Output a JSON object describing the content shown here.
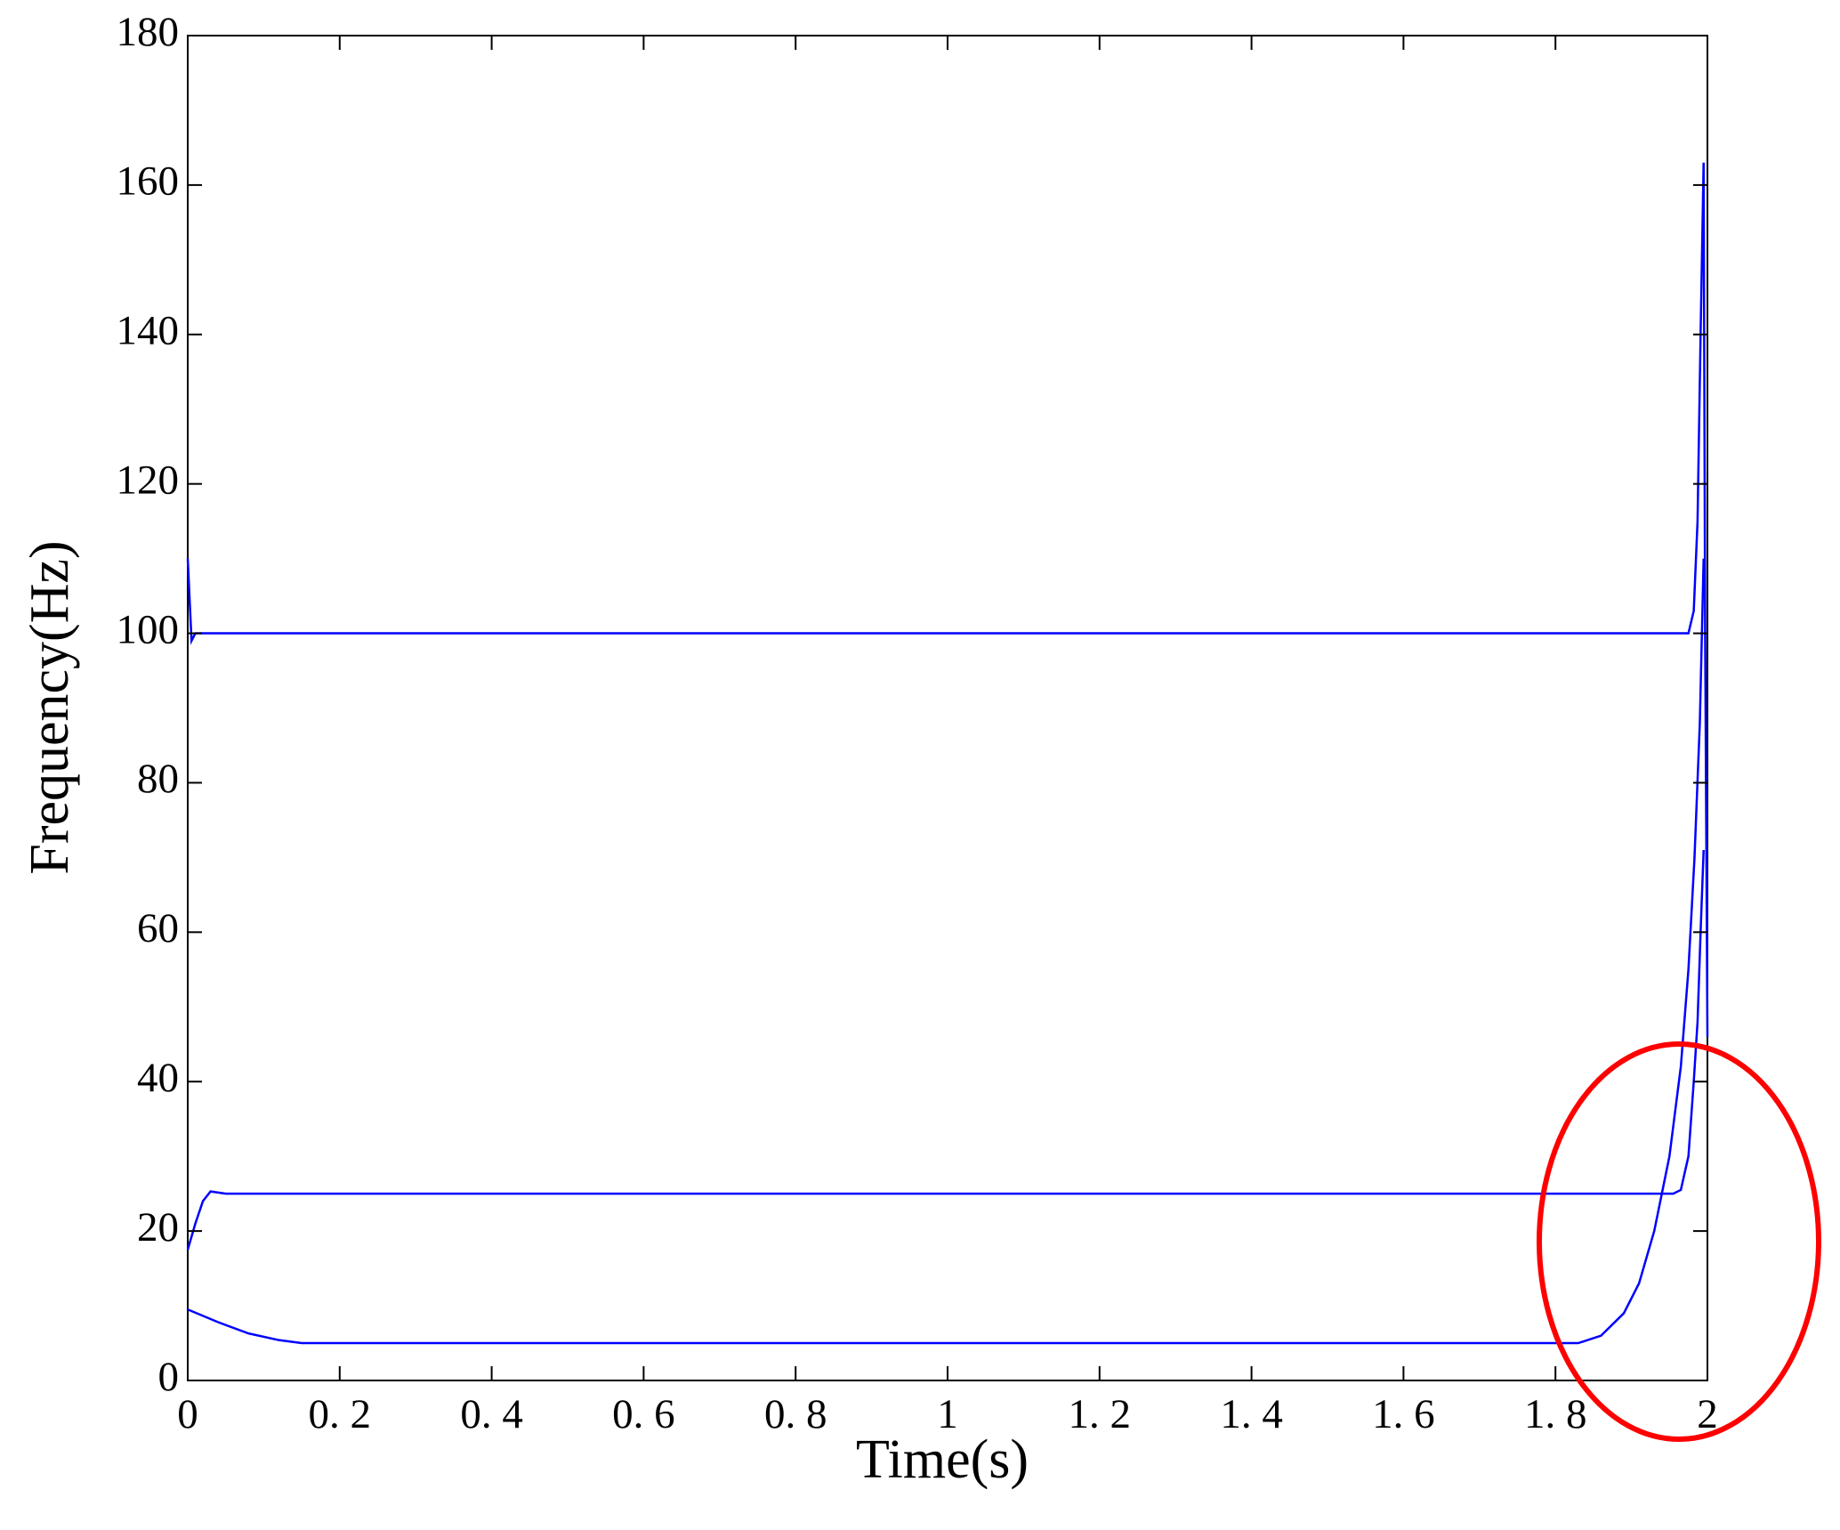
{
  "chart_data": {
    "type": "line",
    "x_label": "Time(s)",
    "y_label": "Frequency(Hz)",
    "xlim": [
      0,
      2
    ],
    "ylim": [
      0,
      180
    ],
    "xticks": [
      0,
      {
        "value": 0.2,
        "label": "0. 2"
      },
      {
        "value": 0.4,
        "label": "0. 4"
      },
      {
        "value": 0.6,
        "label": "0. 6"
      },
      {
        "value": 0.8,
        "label": "0. 8"
      },
      1,
      {
        "value": 1.2,
        "label": "1. 2"
      },
      {
        "value": 1.4,
        "label": "1. 4"
      },
      {
        "value": 1.6,
        "label": "1. 6"
      },
      {
        "value": 1.8,
        "label": "1. 8"
      },
      2
    ],
    "yticks": [
      0,
      20,
      40,
      60,
      80,
      100,
      120,
      140,
      160,
      180
    ],
    "series": [
      {
        "color": "#0000ff",
        "x": [
          0,
          0.005,
          0.01,
          0.02,
          1.96,
          1.975,
          1.982,
          1.987,
          1.991,
          1.995,
          1.997,
          2.0
        ],
        "values": [
          110,
          99,
          100,
          100,
          100,
          100,
          103,
          115,
          140,
          163,
          100,
          46
        ]
      },
      {
        "color": "#0000ff",
        "x": [
          0,
          0.01,
          0.02,
          0.03,
          0.05,
          1.955,
          1.965,
          1.975,
          1.982,
          1.987,
          1.991,
          1.995
        ],
        "values": [
          17.5,
          21,
          24,
          25.3,
          25,
          25,
          25.5,
          30,
          40,
          48,
          60,
          71
        ]
      },
      {
        "color": "#0000ff",
        "x": [
          0,
          0.04,
          0.08,
          0.12,
          0.15,
          1.83,
          1.86,
          1.89,
          1.91,
          1.93,
          1.95,
          1.965,
          1.975,
          1.983,
          1.99,
          1.995
        ],
        "values": [
          9.5,
          7.8,
          6.3,
          5.4,
          5,
          5,
          6,
          9,
          13,
          20,
          30,
          42,
          55,
          70,
          88,
          110
        ]
      }
    ]
  }
}
